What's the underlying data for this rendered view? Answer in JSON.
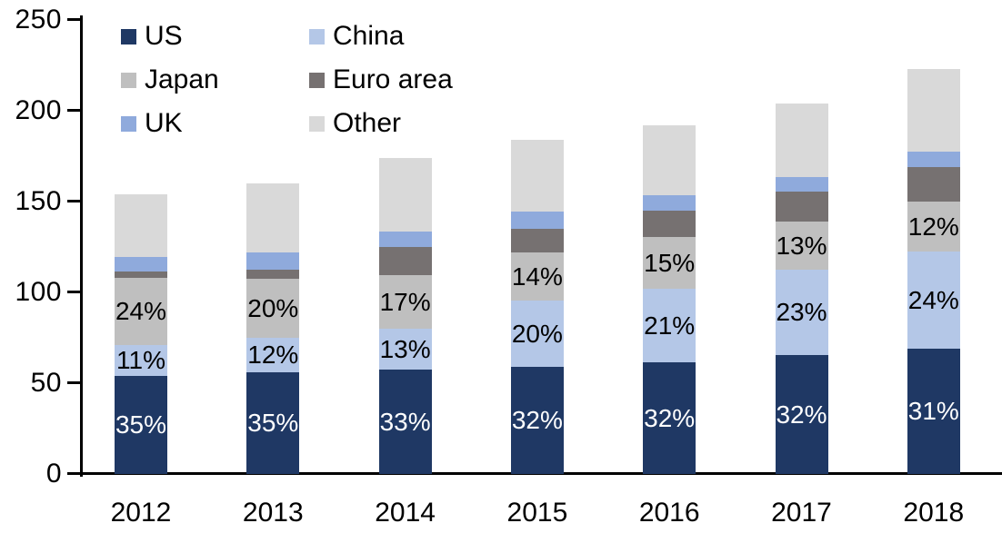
{
  "chart_data": {
    "type": "bar",
    "stacked": true,
    "title": "",
    "xlabel": "",
    "ylabel": "",
    "categories": [
      "2012",
      "2013",
      "2014",
      "2015",
      "2016",
      "2017",
      "2018"
    ],
    "series": [
      {
        "name": "US",
        "color": "#1F3864",
        "values": [
          54,
          56,
          57.5,
          59,
          61.5,
          65.5,
          69
        ],
        "labels": [
          "35%",
          "35%",
          "33%",
          "32%",
          "32%",
          "32%",
          "31%"
        ],
        "label_color": "#FFFFFF"
      },
      {
        "name": "China",
        "color": "#B4C7E7",
        "values": [
          17,
          19,
          22.5,
          36.5,
          40.5,
          47,
          53.5
        ],
        "labels": [
          "11%",
          "12%",
          "13%",
          "20%",
          "21%",
          "23%",
          "24%"
        ],
        "label_color": "#000000"
      },
      {
        "name": "Japan",
        "color": "#BFBFBF",
        "values": [
          37,
          32.5,
          29.5,
          26.5,
          28.5,
          26.5,
          27.5
        ],
        "labels": [
          "24%",
          "20%",
          "17%",
          "14%",
          "15%",
          "13%",
          "12%"
        ],
        "label_color": "#000000"
      },
      {
        "name": "Euro area",
        "color": "#767171",
        "values": [
          3.5,
          5,
          15.5,
          13,
          14.5,
          16.5,
          19
        ]
      },
      {
        "name": "UK",
        "color": "#8FAADC",
        "values": [
          8,
          9.5,
          8.5,
          9.5,
          8.5,
          8,
          8.5
        ]
      },
      {
        "name": "Other",
        "color": "#D9D9D9",
        "values": [
          34.5,
          38,
          40.5,
          39.5,
          38.5,
          40.5,
          45.5
        ]
      }
    ],
    "totals": [
      154,
      160,
      174,
      184,
      192,
      204,
      223
    ],
    "y_axis": {
      "min": 0,
      "max": 250,
      "tick_interval": 50,
      "tick_labels": [
        "0",
        "50",
        "100",
        "150",
        "200",
        "250"
      ]
    },
    "axis_color": "#000000",
    "grid": false,
    "legend": {
      "position": "top-left",
      "columns": 2,
      "row_major_order": [
        "US",
        "China",
        "Japan",
        "Euro area",
        "UK",
        "Other"
      ]
    }
  }
}
